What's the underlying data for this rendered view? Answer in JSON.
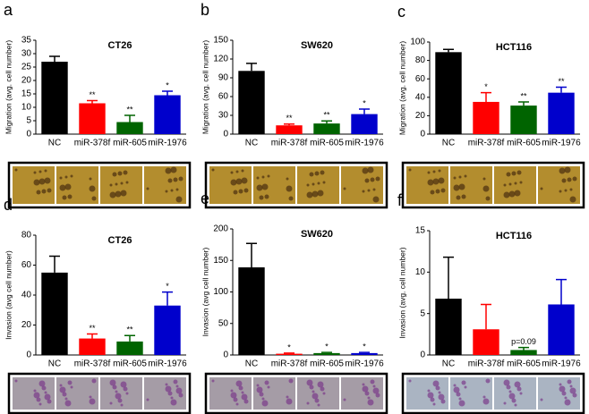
{
  "chart_data": [
    {
      "type": "bar",
      "panel": "a",
      "title": "CT26",
      "ylabel": "Migration (avg. cell number)",
      "categories": [
        "NC",
        "miR-378f",
        "miR-605",
        "miR-1976"
      ],
      "values": [
        27,
        11.5,
        4.5,
        14.5
      ],
      "errors": [
        2,
        1,
        2.5,
        1.5
      ],
      "annotations": [
        null,
        "**",
        "**",
        "*"
      ],
      "colors": [
        "#000000",
        "#ff0000",
        "#006400",
        "#0000cc"
      ],
      "ylim": [
        0,
        35
      ],
      "yticks": [
        0,
        5,
        10,
        15,
        20,
        25,
        30,
        35
      ]
    },
    {
      "type": "bar",
      "panel": "b",
      "title": "SW620",
      "ylabel": "Migration (avg. cell number)",
      "categories": [
        "NC",
        "miR-378f",
        "miR-605",
        "miR-1976"
      ],
      "values": [
        101,
        14,
        17,
        32
      ],
      "errors": [
        12,
        2,
        4,
        8
      ],
      "annotations": [
        null,
        "**",
        "**",
        "*"
      ],
      "colors": [
        "#000000",
        "#ff0000",
        "#006400",
        "#0000cc"
      ],
      "ylim": [
        0,
        150
      ],
      "yticks": [
        0,
        30,
        60,
        90,
        120,
        150
      ]
    },
    {
      "type": "bar",
      "panel": "c",
      "title": "HCT116",
      "ylabel": "Migration (avg. cell number)",
      "categories": [
        "NC",
        "miR-378f",
        "miR-605",
        "miR-1976"
      ],
      "values": [
        89,
        35,
        31,
        45
      ],
      "errors": [
        3,
        10,
        4,
        6
      ],
      "annotations": [
        null,
        "*",
        "**",
        "**"
      ],
      "colors": [
        "#000000",
        "#ff0000",
        "#006400",
        "#0000cc"
      ],
      "ylim": [
        0,
        100
      ],
      "yticks": [
        0,
        20,
        40,
        60,
        80,
        100
      ]
    },
    {
      "type": "bar",
      "panel": "d",
      "title": "CT26",
      "ylabel": "Invasion (avg cell number)",
      "categories": [
        "NC",
        "miR-378f",
        "miR-605",
        "miR-1976"
      ],
      "values": [
        55,
        11,
        9,
        33
      ],
      "errors": [
        11,
        3,
        4,
        9
      ],
      "annotations": [
        null,
        "**",
        "**",
        "*"
      ],
      "colors": [
        "#000000",
        "#ff0000",
        "#006400",
        "#0000cc"
      ],
      "ylim": [
        0,
        80
      ],
      "yticks": [
        0,
        20,
        40,
        60,
        80
      ]
    },
    {
      "type": "bar",
      "panel": "e",
      "title": "SW620",
      "ylabel": "Invasion (avg cell number)",
      "categories": [
        "NC",
        "miR-378f",
        "miR-605",
        "miR-1976"
      ],
      "values": [
        139,
        2,
        3,
        3
      ],
      "errors": [
        38,
        1,
        1,
        1
      ],
      "annotations": [
        null,
        "*",
        "*",
        "*"
      ],
      "colors": [
        "#000000",
        "#ff0000",
        "#006400",
        "#0000cc"
      ],
      "ylim": [
        0,
        200
      ],
      "yticks": [
        0,
        50,
        100,
        150,
        200
      ]
    },
    {
      "type": "bar",
      "panel": "f",
      "title": "HCT116",
      "ylabel": "Invasion (avg. cell number)",
      "categories": [
        "NC",
        "miR-378f",
        "miR-605",
        "miR-1976"
      ],
      "values": [
        6.8,
        3.1,
        0.6,
        6.1
      ],
      "errors": [
        5,
        3,
        0.3,
        3
      ],
      "annotations": [
        null,
        null,
        "p=0.09",
        null
      ],
      "colors": [
        "#000000",
        "#ff0000",
        "#006400",
        "#0000cc"
      ],
      "ylim": [
        0,
        15
      ],
      "yticks": [
        0,
        5,
        10,
        15
      ]
    }
  ]
}
